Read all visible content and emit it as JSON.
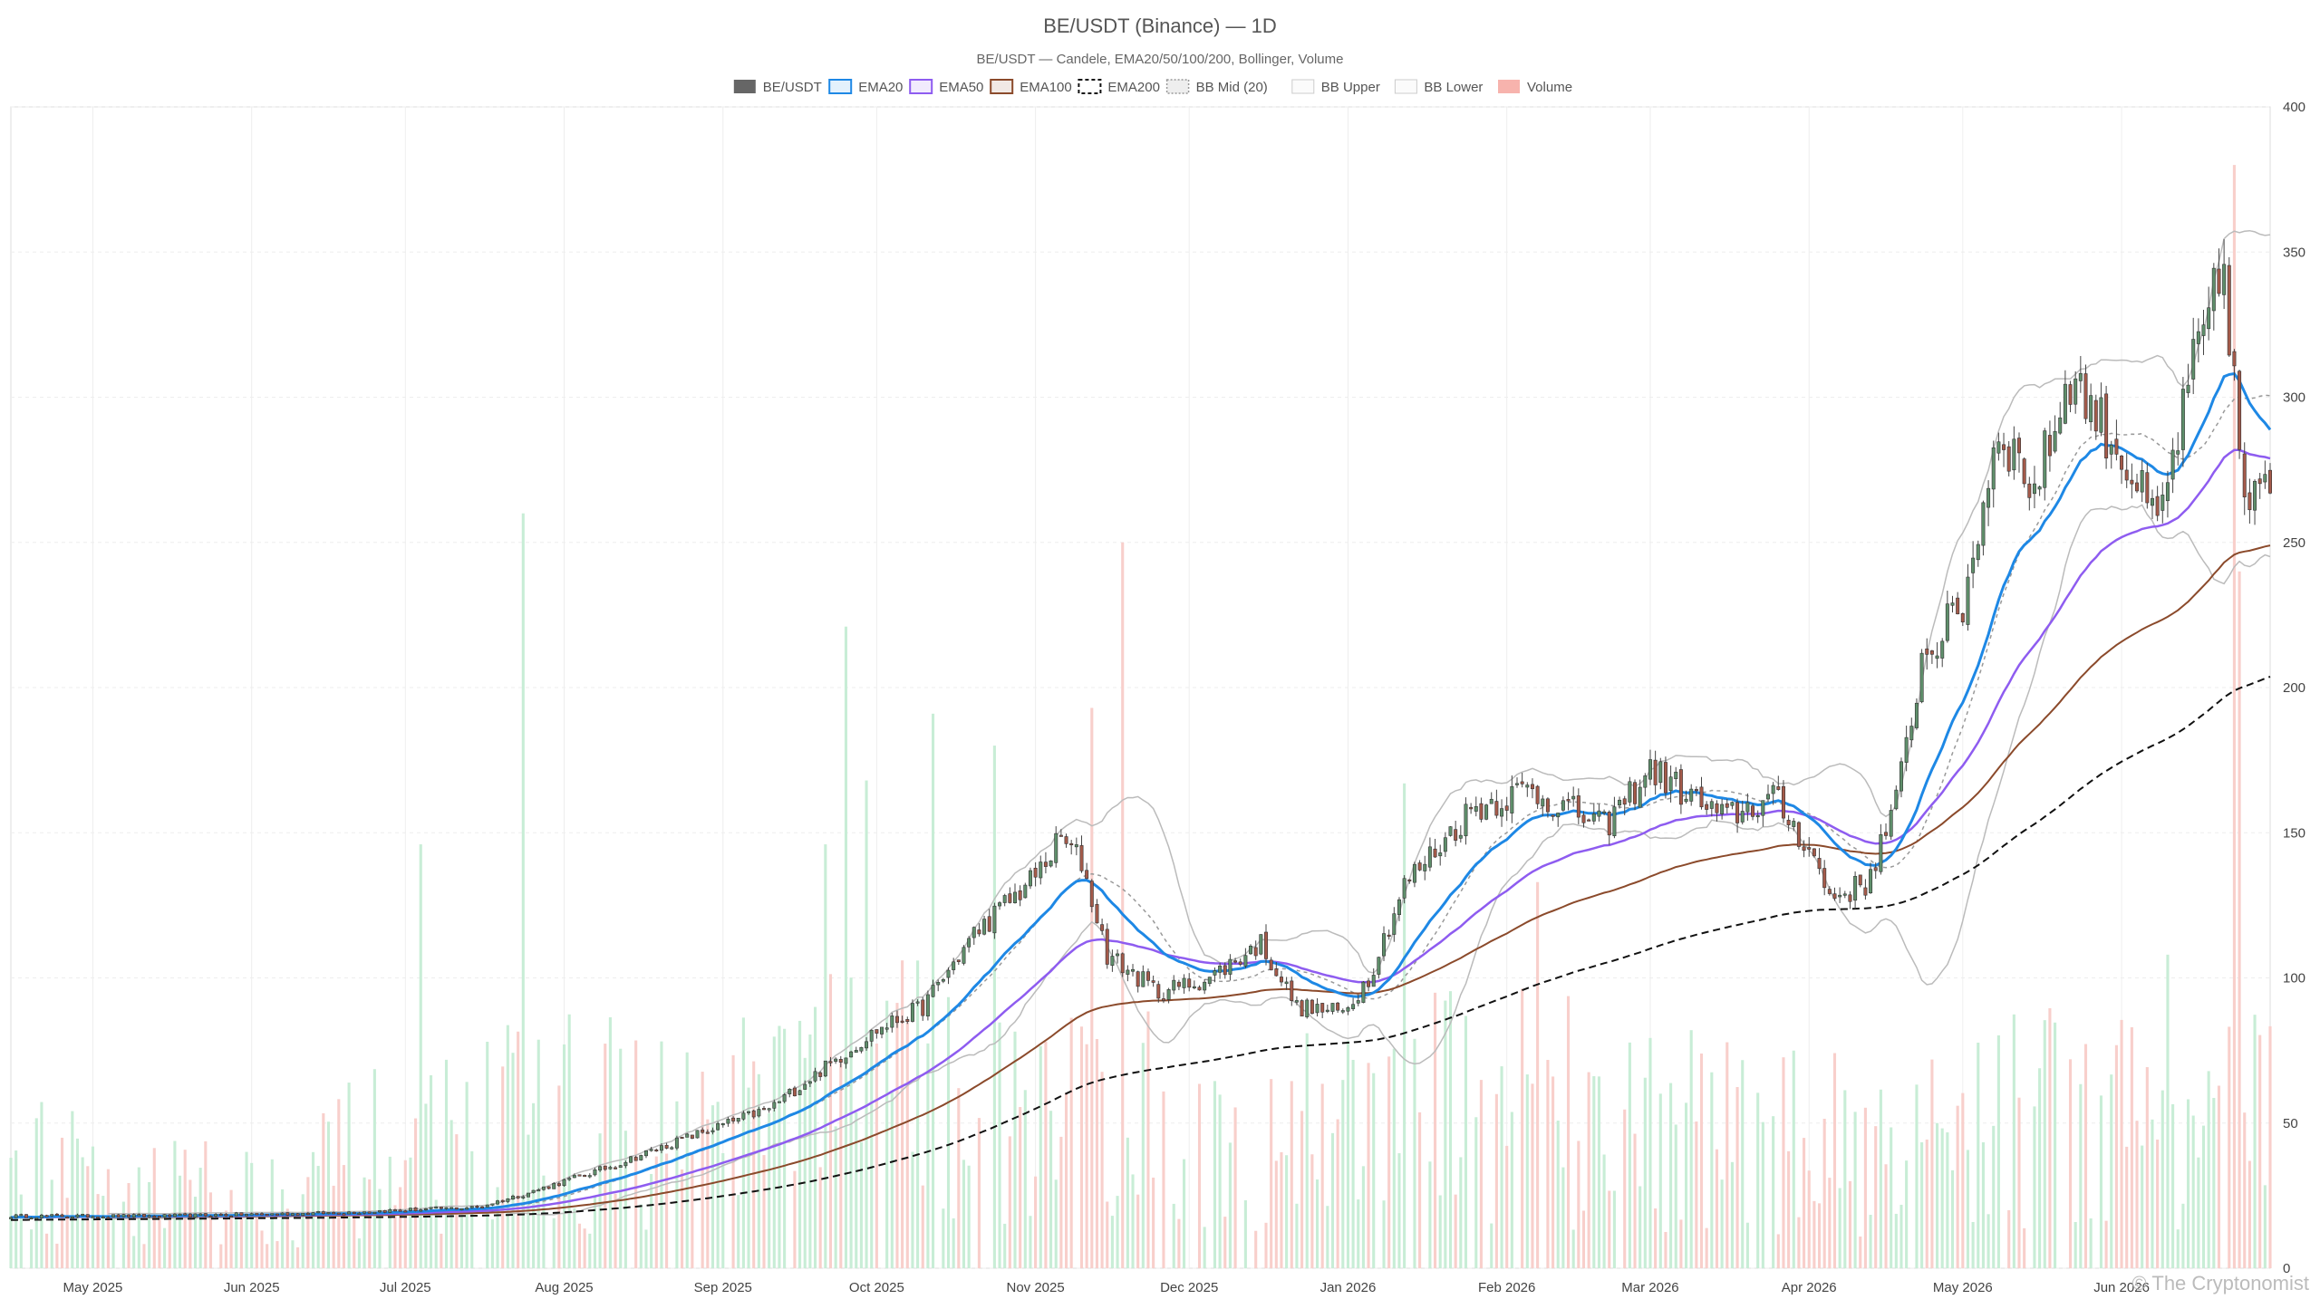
{
  "chart_data": {
    "type": "candlestick",
    "title": "BE/USDT (Binance) — 1D",
    "subtitle": "BE/USDT — Candele, EMA20/50/100/200, Bollinger, Volume",
    "watermark": "© The Cryptonomist",
    "grid": true,
    "legend_position": "top-center",
    "legend": [
      {
        "label": "BE/USDT",
        "color": "#666666",
        "style": "solid-fill"
      },
      {
        "label": "EMA20",
        "color": "#1e88e5",
        "style": "line"
      },
      {
        "label": "EMA50",
        "color": "#8e5cf0",
        "style": "line"
      },
      {
        "label": "EMA100",
        "color": "#8b4a2b",
        "style": "line"
      },
      {
        "label": "EMA200",
        "color": "#111111",
        "style": "dashed"
      },
      {
        "label": "BB Mid (20)",
        "color": "#999999",
        "style": "dotted"
      },
      {
        "label": "BB Upper",
        "color": "#bbbbbb",
        "style": "line"
      },
      {
        "label": "BB Lower",
        "color": "#bbbbbb",
        "style": "line"
      },
      {
        "label": "Volume",
        "color": "#f7b3ad",
        "style": "fill"
      }
    ],
    "colors": {
      "up": "#5f8f6b",
      "down": "#a45a4a",
      "volume_up": "#c8edd6",
      "volume_down": "#f8cfcb",
      "ema20": "#1e88e5",
      "ema50": "#8e5cf0",
      "ema100": "#8b4a2b",
      "ema200": "#111111",
      "bb_mid": "#999999",
      "bb_band": "#bbbbbb"
    },
    "x_axis": {
      "type": "date",
      "range": [
        "2025-04-15",
        "2026-06-30"
      ],
      "ticks": [
        {
          "date": "2025-05-01",
          "label": "May 2025"
        },
        {
          "date": "2025-06-01",
          "label": "Jun 2025"
        },
        {
          "date": "2025-07-01",
          "label": "Jul 2025"
        },
        {
          "date": "2025-08-01",
          "label": "Aug 2025"
        },
        {
          "date": "2025-09-01",
          "label": "Sep 2025"
        },
        {
          "date": "2025-10-01",
          "label": "Oct 2025"
        },
        {
          "date": "2025-11-01",
          "label": "Nov 2025"
        },
        {
          "date": "2025-12-01",
          "label": "Dec 2025"
        },
        {
          "date": "2026-01-01",
          "label": "Jan 2026"
        },
        {
          "date": "2026-02-01",
          "label": "Feb 2026"
        },
        {
          "date": "2026-03-01",
          "label": "Mar 2026"
        },
        {
          "date": "2026-04-01",
          "label": "Apr 2026"
        },
        {
          "date": "2026-05-01",
          "label": "May 2026"
        },
        {
          "date": "2026-06-01",
          "label": "Jun 2026"
        }
      ]
    },
    "y_axis": {
      "position": "right",
      "range": [
        0,
        400
      ],
      "ticks": [
        0,
        50,
        100,
        150,
        200,
        250,
        300,
        350,
        400
      ]
    },
    "price_anchors": [
      [
        "2025-04-15",
        18
      ],
      [
        "2025-05-15",
        18
      ],
      [
        "2025-06-15",
        19
      ],
      [
        "2025-07-15",
        21
      ],
      [
        "2025-07-25",
        26
      ],
      [
        "2025-08-10",
        35
      ],
      [
        "2025-08-25",
        45
      ],
      [
        "2025-09-10",
        55
      ],
      [
        "2025-09-20",
        68
      ],
      [
        "2025-10-01",
        82
      ],
      [
        "2025-10-10",
        90
      ],
      [
        "2025-10-20",
        115
      ],
      [
        "2025-11-01",
        135
      ],
      [
        "2025-11-06",
        148
      ],
      [
        "2025-11-10",
        140
      ],
      [
        "2025-11-15",
        108
      ],
      [
        "2025-11-25",
        95
      ],
      [
        "2025-12-05",
        100
      ],
      [
        "2025-12-15",
        112
      ],
      [
        "2025-12-22",
        90
      ],
      [
        "2025-12-31",
        88
      ],
      [
        "2026-01-05",
        100
      ],
      [
        "2026-01-12",
        132
      ],
      [
        "2026-01-25",
        158
      ],
      [
        "2026-02-05",
        165
      ],
      [
        "2026-02-20",
        152
      ],
      [
        "2026-03-01",
        172
      ],
      [
        "2026-03-15",
        155
      ],
      [
        "2026-03-25",
        162
      ],
      [
        "2026-04-01",
        145
      ],
      [
        "2026-04-05",
        128
      ],
      [
        "2026-04-12",
        132
      ],
      [
        "2026-04-18",
        160
      ],
      [
        "2026-04-23",
        210
      ],
      [
        "2026-05-01",
        228
      ],
      [
        "2026-05-08",
        290
      ],
      [
        "2026-05-15",
        268
      ],
      [
        "2026-05-22",
        308
      ],
      [
        "2026-06-01",
        280
      ],
      [
        "2026-06-08",
        255
      ],
      [
        "2026-06-15",
        310
      ],
      [
        "2026-06-21",
        345
      ],
      [
        "2026-06-25",
        262
      ],
      [
        "2026-06-30",
        268
      ]
    ],
    "volume_anchors": [
      [
        "2025-04-15",
        40
      ],
      [
        "2025-06-01",
        30
      ],
      [
        "2025-07-01",
        50
      ],
      [
        "2025-08-01",
        60
      ],
      [
        "2025-09-01",
        55
      ],
      [
        "2025-10-01",
        75
      ],
      [
        "2025-11-01",
        70
      ],
      [
        "2025-12-01",
        55
      ],
      [
        "2026-01-01",
        60
      ],
      [
        "2026-02-01",
        70
      ],
      [
        "2026-03-01",
        60
      ],
      [
        "2026-04-01",
        50
      ],
      [
        "2026-05-01",
        60
      ],
      [
        "2026-06-01",
        60
      ],
      [
        "2026-06-30",
        70
      ]
    ],
    "volume_spikes": [
      [
        "2025-07-24",
        260
      ],
      [
        "2025-09-25",
        221
      ],
      [
        "2025-11-18",
        250
      ],
      [
        "2025-11-12",
        193
      ],
      [
        "2025-10-12",
        191
      ],
      [
        "2025-10-24",
        180
      ],
      [
        "2025-07-04",
        146
      ],
      [
        "2025-09-21",
        146
      ],
      [
        "2025-09-29",
        168
      ],
      [
        "2026-06-23",
        380
      ],
      [
        "2026-06-24",
        240
      ],
      [
        "2026-06-10",
        108
      ],
      [
        "2026-01-12",
        167
      ],
      [
        "2026-02-07",
        133
      ]
    ]
  }
}
